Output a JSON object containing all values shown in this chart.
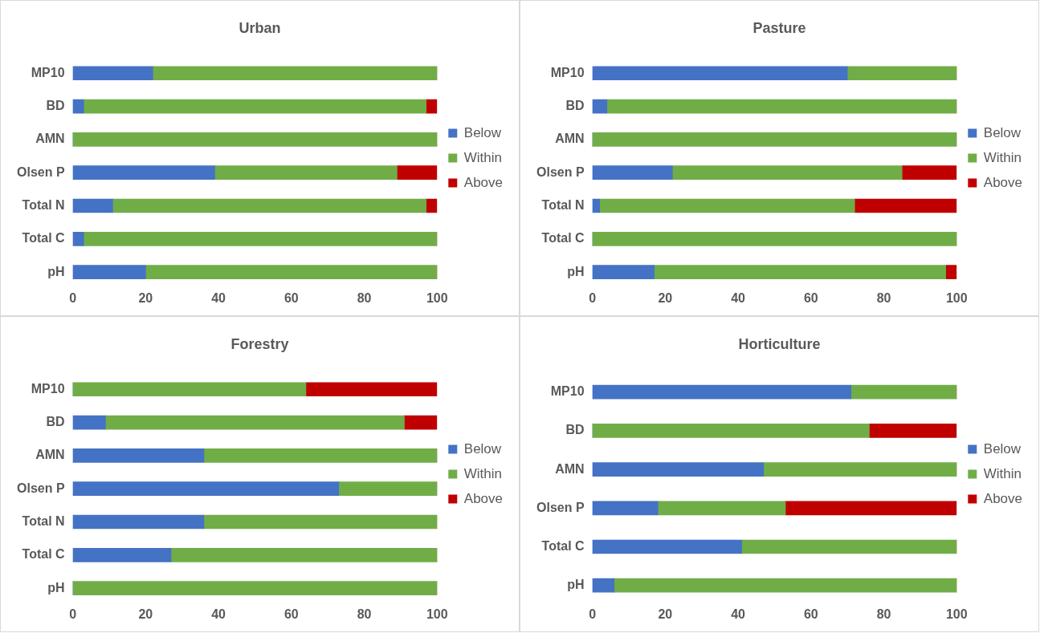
{
  "chart_data": [
    {
      "type": "bar",
      "title": "Urban",
      "orientation": "horizontal",
      "stacked": true,
      "legend": "right",
      "grid": false,
      "categories": [
        "MP10",
        "BD",
        "AMN",
        "Olsen P",
        "Total N",
        "Total C",
        "pH"
      ],
      "xlim": [
        0,
        100
      ],
      "xticks": [
        0,
        20,
        40,
        60,
        80,
        100
      ],
      "series": [
        {
          "name": "Below",
          "color": "#4472c4",
          "values": [
            22,
            3,
            0,
            39,
            11,
            3,
            20
          ]
        },
        {
          "name": "Within",
          "color": "#70ad47",
          "values": [
            78,
            94,
            100,
            50,
            86,
            97,
            80
          ]
        },
        {
          "name": "Above",
          "color": "#c00000",
          "values": [
            0,
            3,
            0,
            11,
            3,
            0,
            0
          ]
        }
      ]
    },
    {
      "type": "bar",
      "title": "Pasture",
      "orientation": "horizontal",
      "stacked": true,
      "legend": "right",
      "grid": false,
      "categories": [
        "MP10",
        "BD",
        "AMN",
        "Olsen P",
        "Total N",
        "Total C",
        "pH"
      ],
      "xlim": [
        0,
        100
      ],
      "xticks": [
        0,
        20,
        40,
        60,
        80,
        100
      ],
      "series": [
        {
          "name": "Below",
          "color": "#4472c4",
          "values": [
            70,
            4,
            0,
            22,
            2,
            0,
            17
          ]
        },
        {
          "name": "Within",
          "color": "#70ad47",
          "values": [
            30,
            96,
            100,
            63,
            70,
            100,
            80
          ]
        },
        {
          "name": "Above",
          "color": "#c00000",
          "values": [
            0,
            0,
            0,
            15,
            28,
            0,
            3
          ]
        }
      ]
    },
    {
      "type": "bar",
      "title": "Forestry",
      "orientation": "horizontal",
      "stacked": true,
      "legend": "right",
      "grid": false,
      "categories": [
        "MP10",
        "BD",
        "AMN",
        "Olsen P",
        "Total N",
        "Total C",
        "pH"
      ],
      "xlim": [
        0,
        100
      ],
      "xticks": [
        0,
        20,
        40,
        60,
        80,
        100
      ],
      "series": [
        {
          "name": "Below",
          "color": "#4472c4",
          "values": [
            0,
            9,
            36,
            73,
            36,
            27,
            0
          ]
        },
        {
          "name": "Within",
          "color": "#70ad47",
          "values": [
            64,
            82,
            64,
            27,
            64,
            73,
            100
          ]
        },
        {
          "name": "Above",
          "color": "#c00000",
          "values": [
            36,
            9,
            0,
            0,
            0,
            0,
            0
          ]
        }
      ]
    },
    {
      "type": "bar",
      "title": "Horticulture",
      "orientation": "horizontal",
      "stacked": true,
      "legend": "right",
      "grid": false,
      "categories": [
        "MP10",
        "BD",
        "AMN",
        "Olsen P",
        "Total C",
        "pH"
      ],
      "xlim": [
        0,
        100
      ],
      "xticks": [
        0,
        20,
        40,
        60,
        80,
        100
      ],
      "series": [
        {
          "name": "Below",
          "color": "#4472c4",
          "values": [
            71,
            0,
            47,
            18,
            41,
            6
          ]
        },
        {
          "name": "Within",
          "color": "#70ad47",
          "values": [
            29,
            76,
            53,
            35,
            59,
            94
          ]
        },
        {
          "name": "Above",
          "color": "#c00000",
          "values": [
            0,
            24,
            0,
            47,
            0,
            0
          ]
        }
      ]
    }
  ]
}
